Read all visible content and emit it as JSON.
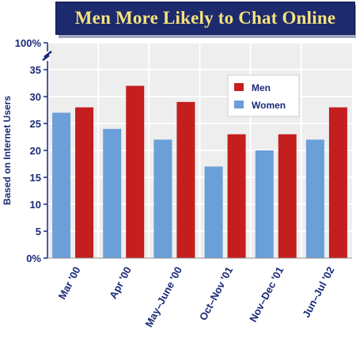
{
  "chart_data": {
    "type": "bar",
    "title": "Men More Likely to Chat Online",
    "ylabel": "Based on Internet Users",
    "xlabel": "",
    "categories": [
      "Mar '00",
      "Apr '00",
      "May–June '00",
      "Oct–Nov '01",
      "Nov–Dec '01",
      "Jun–Jul '02"
    ],
    "series": [
      {
        "name": "Women",
        "values": [
          27,
          24,
          22,
          17,
          20,
          22
        ],
        "color": "#6a9fd8"
      },
      {
        "name": "Men",
        "values": [
          28,
          32,
          29,
          23,
          23,
          28
        ],
        "color": "#c41e1e"
      }
    ],
    "ylim": [
      0,
      35
    ],
    "y_axis_break": true,
    "yticks": [
      0,
      5,
      10,
      15,
      20,
      25,
      30,
      35
    ],
    "ytick_labels": [
      "0%",
      "5",
      "10",
      "15",
      "20",
      "25",
      "30",
      "35"
    ],
    "ytop_label": "100%",
    "grid": true,
    "legend_position": "top-right",
    "legend_order": [
      "Men",
      "Women"
    ],
    "colors": {
      "title_bg": "#1d2a6e",
      "title_text": "#f5e37a",
      "plot_bg": "#eeeeee",
      "grid": "#ffffff",
      "text": "#1a2a7a"
    }
  }
}
